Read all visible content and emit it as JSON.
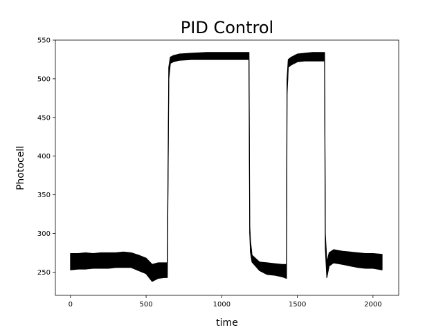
{
  "chart_data": {
    "type": "line",
    "title": "PID Control",
    "xlabel": "time",
    "ylabel": "Photocell",
    "xlim": [
      -100,
      2170
    ],
    "ylim": [
      220,
      550
    ],
    "xticks": [
      0,
      500,
      1000,
      1500,
      2000
    ],
    "yticks": [
      250,
      300,
      350,
      400,
      450,
      500,
      550
    ],
    "grid": false,
    "legend": "none",
    "line_color": "#000000",
    "series": [
      {
        "band_note_free": true,
        "x": [
          0,
          50,
          100,
          150,
          200,
          250,
          300,
          350,
          400,
          450,
          500,
          540,
          580,
          620,
          640,
          650,
          660,
          680,
          720,
          800,
          900,
          1000,
          1100,
          1180,
          1185,
          1190,
          1200,
          1250,
          1300,
          1350,
          1400,
          1428,
          1432,
          1440,
          1460,
          1500,
          1550,
          1600,
          1680,
          1685,
          1695,
          1710,
          1740,
          1800,
          1850,
          1900,
          1950,
          2000,
          2060
        ],
        "lower": [
          253,
          254,
          254,
          255,
          255,
          255,
          256,
          256,
          256,
          252,
          248,
          238,
          242,
          243,
          243,
          500,
          520,
          522,
          524,
          525,
          525,
          525,
          525,
          525,
          300,
          275,
          263,
          252,
          247,
          246,
          244,
          242,
          480,
          515,
          518,
          522,
          523,
          523,
          523,
          280,
          243,
          258,
          262,
          260,
          258,
          256,
          255,
          255,
          253
        ],
        "upper": [
          274,
          274,
          275,
          274,
          275,
          275,
          275,
          276,
          275,
          272,
          268,
          260,
          262,
          262,
          262,
          515,
          528,
          530,
          532,
          533,
          534,
          534,
          534,
          534,
          310,
          290,
          272,
          263,
          262,
          261,
          260,
          260,
          500,
          525,
          528,
          532,
          533,
          534,
          534,
          300,
          262,
          275,
          279,
          277,
          276,
          275,
          274,
          274,
          273
        ]
      }
    ]
  }
}
